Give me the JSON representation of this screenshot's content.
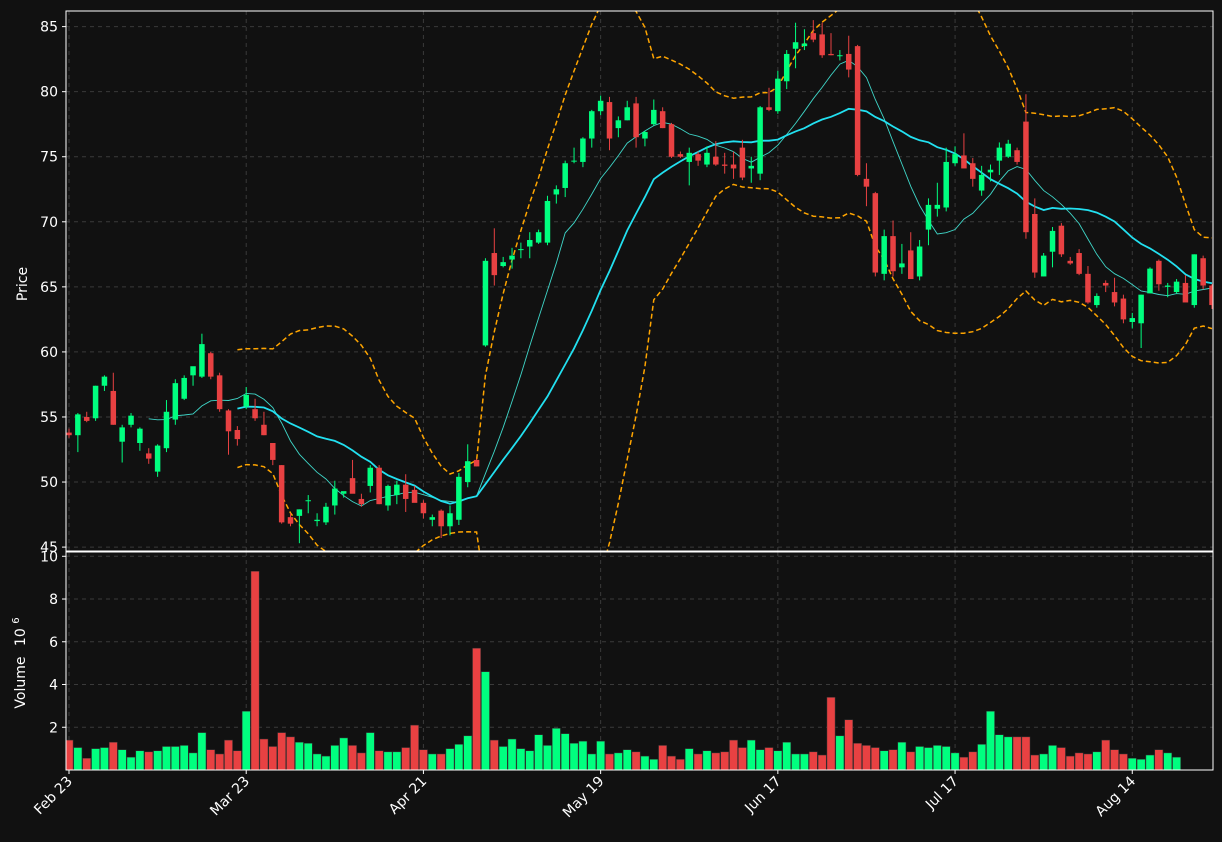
{
  "chart_data": {
    "type": "candlestick",
    "theme": {
      "background": "#111111",
      "up_color": "#00ff7f",
      "down_color": "#e84142",
      "grid": "dashed",
      "ma_long_color": "#22e0f0",
      "ma_short_color": "#3fd6c8",
      "band_color": "#ffa500"
    },
    "price_panel": {
      "ylabel": "Price",
      "ylim": [
        44.7,
        86.2
      ],
      "yticks": [
        45,
        50,
        55,
        60,
        65,
        70,
        75,
        80,
        85
      ]
    },
    "volume_panel": {
      "ylabel": "Volume",
      "ylabel_exponent": "10",
      "ylabel_power": "6",
      "ylim": [
        0,
        10.2
      ],
      "yticks": [
        2,
        4,
        6,
        8,
        10
      ]
    },
    "xtick_labels": [
      {
        "label": "Feb 23",
        "index": 0
      },
      {
        "label": "Mar 23",
        "index": 20
      },
      {
        "label": "Apr 21",
        "index": 40
      },
      {
        "label": "May 19",
        "index": 60
      },
      {
        "label": "Jun 17",
        "index": 80
      },
      {
        "label": "Jul 17",
        "index": 100
      },
      {
        "label": "Aug 14",
        "index": 120
      }
    ],
    "candles": [
      [
        53.8,
        54.1,
        53.4,
        53.6
      ],
      [
        53.6,
        55.3,
        52.3,
        55.2
      ],
      [
        55.0,
        55.4,
        54.6,
        54.7
      ],
      [
        54.9,
        57.4,
        54.7,
        57.4
      ],
      [
        57.4,
        58.2,
        57.0,
        58.1
      ],
      [
        57.0,
        58.4,
        54.4,
        54.4
      ],
      [
        53.1,
        54.4,
        51.5,
        54.2
      ],
      [
        54.4,
        55.3,
        54.2,
        55.1
      ],
      [
        53.0,
        54.2,
        52.4,
        54.1
      ],
      [
        52.2,
        52.6,
        51.4,
        51.8
      ],
      [
        50.8,
        52.9,
        50.4,
        52.8
      ],
      [
        52.6,
        56.3,
        52.3,
        55.4
      ],
      [
        54.8,
        57.9,
        54.4,
        57.6
      ],
      [
        56.4,
        58.2,
        56.3,
        58.0
      ],
      [
        58.2,
        58.8,
        57.4,
        58.9
      ],
      [
        58.1,
        61.4,
        58.0,
        60.6
      ],
      [
        59.9,
        60.0,
        57.9,
        58.1
      ],
      [
        58.2,
        58.4,
        55.4,
        55.6
      ],
      [
        55.5,
        55.6,
        52.1,
        53.9
      ],
      [
        54.0,
        54.3,
        52.8,
        53.3
      ],
      [
        55.8,
        57.3,
        55.6,
        56.7
      ],
      [
        55.6,
        56.4,
        54.7,
        54.9
      ],
      [
        54.4,
        55.4,
        53.6,
        53.6
      ],
      [
        53.0,
        53.0,
        51.3,
        51.7
      ],
      [
        51.3,
        51.3,
        46.8,
        46.9
      ],
      [
        47.3,
        47.6,
        46.6,
        46.8
      ],
      [
        47.4,
        47.9,
        45.3,
        47.9
      ],
      [
        48.6,
        49.0,
        47.6,
        48.6
      ],
      [
        47.0,
        47.6,
        46.6,
        47.1
      ],
      [
        46.9,
        48.4,
        46.7,
        48.1
      ],
      [
        48.2,
        50.1,
        47.5,
        49.5
      ],
      [
        49.1,
        49.2,
        48.8,
        49.3
      ],
      [
        50.3,
        51.7,
        49.2,
        49.1
      ],
      [
        48.7,
        49.1,
        48.1,
        48.3
      ],
      [
        49.7,
        51.3,
        49.2,
        51.1
      ],
      [
        51.1,
        51.3,
        48.3,
        48.3
      ],
      [
        48.2,
        49.8,
        47.8,
        49.7
      ],
      [
        49.0,
        50.1,
        48.3,
        49.8
      ],
      [
        49.8,
        50.6,
        47.7,
        48.7
      ],
      [
        49.4,
        49.7,
        48.5,
        48.4
      ],
      [
        48.4,
        48.6,
        47.2,
        47.6
      ],
      [
        47.1,
        47.5,
        46.6,
        47.3
      ],
      [
        47.8,
        47.9,
        45.7,
        46.6
      ],
      [
        46.6,
        48.2,
        45.9,
        47.6
      ],
      [
        47.1,
        50.7,
        46.7,
        50.4
      ],
      [
        50.0,
        52.9,
        49.6,
        51.6
      ],
      [
        51.7,
        51.8,
        51.2,
        51.2
      ],
      [
        60.5,
        67.2,
        60.4,
        67.0
      ],
      [
        67.6,
        69.5,
        65.1,
        65.9
      ],
      [
        66.6,
        67.3,
        66.5,
        66.9
      ],
      [
        67.1,
        68.0,
        66.4,
        67.4
      ],
      [
        67.9,
        68.4,
        67.2,
        67.9
      ],
      [
        68.1,
        69.2,
        67.2,
        68.6
      ],
      [
        68.4,
        69.4,
        68.3,
        69.2
      ],
      [
        68.4,
        72.0,
        68.2,
        71.6
      ],
      [
        72.1,
        72.8,
        71.4,
        72.5
      ],
      [
        72.6,
        74.7,
        71.9,
        74.5
      ],
      [
        74.7,
        75.7,
        74.5,
        74.7
      ],
      [
        74.6,
        76.5,
        74.2,
        76.4
      ],
      [
        76.4,
        78.6,
        75.7,
        78.5
      ],
      [
        78.5,
        79.7,
        78.2,
        79.3
      ],
      [
        79.2,
        79.6,
        75.5,
        76.4
      ],
      [
        77.2,
        78.1,
        76.5,
        77.8
      ],
      [
        77.8,
        79.3,
        77.8,
        78.8
      ],
      [
        79.1,
        79.6,
        75.7,
        76.5
      ],
      [
        76.4,
        77.0,
        75.8,
        76.9
      ],
      [
        77.5,
        79.4,
        77.4,
        78.6
      ],
      [
        78.5,
        78.8,
        77.2,
        77.2
      ],
      [
        77.5,
        77.6,
        74.9,
        75.0
      ],
      [
        75.2,
        75.4,
        74.9,
        75.0
      ],
      [
        74.6,
        75.7,
        72.8,
        75.3
      ],
      [
        75.2,
        75.4,
        74.3,
        74.7
      ],
      [
        74.4,
        75.8,
        74.2,
        75.3
      ],
      [
        75.0,
        76.2,
        74.3,
        74.4
      ],
      [
        74.4,
        75.3,
        73.7,
        74.3
      ],
      [
        74.4,
        75.4,
        73.3,
        74.1
      ],
      [
        75.7,
        76.3,
        73.2,
        73.4
      ],
      [
        74.1,
        75.0,
        73.0,
        74.3
      ],
      [
        73.7,
        78.9,
        73.2,
        78.8
      ],
      [
        78.8,
        80.3,
        78.5,
        78.6
      ],
      [
        78.5,
        81.6,
        78.3,
        81.0
      ],
      [
        80.8,
        83.2,
        80.2,
        82.9
      ],
      [
        83.3,
        85.3,
        81.8,
        83.8
      ],
      [
        83.5,
        84.8,
        83.2,
        83.7
      ],
      [
        84.5,
        85.5,
        83.8,
        84.0
      ],
      [
        84.4,
        85.3,
        82.6,
        82.8
      ],
      [
        82.9,
        84.5,
        82.8,
        82.8
      ],
      [
        82.8,
        83.2,
        82.4,
        82.8
      ],
      [
        82.9,
        84.3,
        81.1,
        81.7
      ],
      [
        83.5,
        83.6,
        73.5,
        73.6
      ],
      [
        73.3,
        74.5,
        71.2,
        72.7
      ],
      [
        72.2,
        72.3,
        65.8,
        66.1
      ],
      [
        66.0,
        69.4,
        65.5,
        68.9
      ],
      [
        68.9,
        70.1,
        65.8,
        66.2
      ],
      [
        66.5,
        68.3,
        66.0,
        66.8
      ],
      [
        67.8,
        69.2,
        66.0,
        65.6
      ],
      [
        65.8,
        68.6,
        65.5,
        68.1
      ],
      [
        69.4,
        71.8,
        68.2,
        71.3
      ],
      [
        71.0,
        73.0,
        70.4,
        71.3
      ],
      [
        71.1,
        75.7,
        70.8,
        74.6
      ],
      [
        74.5,
        75.8,
        74.3,
        75.2
      ],
      [
        75.1,
        76.8,
        74.2,
        74.1
      ],
      [
        74.5,
        74.9,
        72.7,
        73.3
      ],
      [
        72.4,
        74.3,
        72.0,
        73.6
      ],
      [
        73.8,
        74.4,
        73.1,
        74.0
      ],
      [
        74.7,
        76.1,
        73.6,
        75.7
      ],
      [
        75.0,
        76.3,
        74.9,
        76.0
      ],
      [
        75.5,
        75.7,
        74.4,
        74.6
      ],
      [
        77.7,
        79.8,
        68.7,
        69.2
      ],
      [
        70.6,
        71.8,
        65.7,
        66.1
      ],
      [
        65.8,
        67.6,
        65.8,
        67.4
      ],
      [
        67.7,
        69.6,
        66.5,
        69.3
      ],
      [
        69.7,
        69.9,
        67.3,
        67.5
      ],
      [
        67.0,
        67.3,
        66.7,
        66.8
      ],
      [
        67.6,
        67.9,
        65.9,
        66.0
      ],
      [
        66.0,
        66.6,
        63.7,
        63.8
      ],
      [
        63.6,
        64.5,
        63.4,
        64.3
      ],
      [
        65.3,
        65.5,
        64.6,
        65.1
      ],
      [
        64.6,
        65.7,
        63.5,
        63.8
      ],
      [
        64.1,
        64.4,
        62.2,
        62.5
      ],
      [
        62.3,
        63.0,
        61.8,
        62.6
      ],
      [
        62.2,
        64.4,
        60.3,
        64.4
      ],
      [
        64.5,
        66.5,
        64.5,
        66.4
      ],
      [
        67.0,
        67.1,
        64.7,
        65.2
      ],
      [
        65.0,
        65.3,
        64.2,
        65.1
      ],
      [
        64.6,
        65.6,
        64.5,
        65.4
      ],
      [
        65.3,
        65.9,
        63.9,
        63.8
      ],
      [
        63.6,
        67.5,
        63.4,
        67.5
      ],
      [
        67.2,
        67.4,
        64.8,
        65.1
      ],
      [
        65.1,
        65.2,
        63.3,
        63.6
      ]
    ],
    "volumes": [
      1.4,
      1.05,
      0.55,
      1.0,
      1.05,
      1.3,
      0.95,
      0.6,
      0.9,
      0.85,
      0.9,
      1.1,
      1.1,
      1.15,
      0.8,
      1.75,
      0.95,
      0.75,
      1.4,
      0.9,
      2.75,
      9.3,
      1.45,
      1.1,
      1.75,
      1.55,
      1.3,
      1.25,
      0.75,
      0.65,
      1.15,
      1.5,
      1.15,
      0.8,
      1.75,
      0.9,
      0.85,
      0.85,
      1.05,
      2.1,
      0.95,
      0.75,
      0.75,
      1.0,
      1.2,
      1.6,
      5.7,
      4.6,
      1.4,
      1.1,
      1.45,
      1.0,
      0.9,
      1.65,
      1.15,
      1.95,
      1.7,
      1.25,
      1.35,
      0.75,
      1.35,
      0.75,
      0.8,
      0.95,
      0.85,
      0.65,
      0.5,
      1.15,
      0.65,
      0.5,
      1.0,
      0.75,
      0.9,
      0.8,
      0.85,
      1.4,
      1.05,
      1.4,
      0.95,
      1.05,
      0.9,
      1.3,
      0.75,
      0.75,
      0.85,
      0.7,
      3.4,
      1.6,
      2.35,
      1.25,
      1.15,
      1.05,
      0.9,
      0.95,
      1.3,
      0.85,
      1.1,
      1.05,
      1.15,
      1.1,
      0.8,
      0.6,
      0.85,
      1.2,
      2.75,
      1.65,
      1.55,
      1.55,
      1.55,
      0.7,
      0.75,
      1.15,
      1.05,
      0.65,
      0.8,
      0.75,
      0.85,
      1.4,
      0.95,
      0.75,
      0.55,
      0.5,
      0.7,
      0.95,
      0.8,
      0.6
    ]
  }
}
